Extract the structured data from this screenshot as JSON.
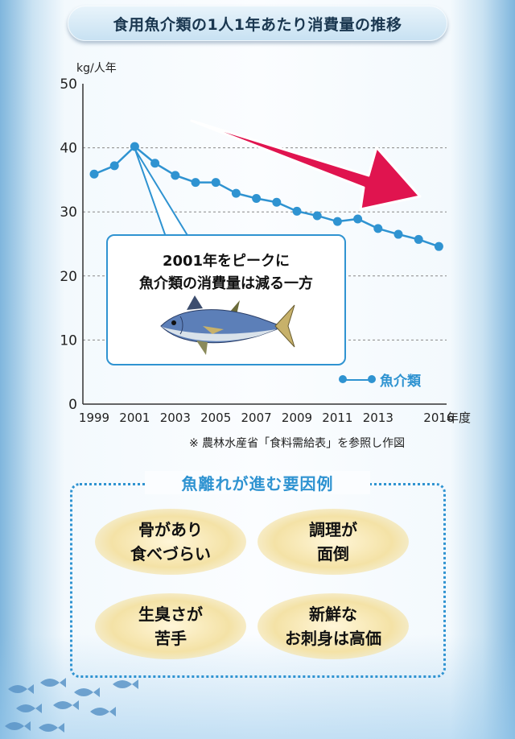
{
  "title": "食用魚介類の1人1年あたり消費量の推移",
  "chart_data": {
    "type": "line",
    "ylabel": "kg/人年",
    "xlabel_unit": "年度",
    "ylim": [
      0,
      50
    ],
    "yticks": [
      "0",
      "10",
      "20",
      "30",
      "40",
      "50"
    ],
    "xtick_labels": [
      "1999",
      "2001",
      "2003",
      "2005",
      "2007",
      "2009",
      "2011",
      "2013",
      "2016"
    ],
    "x": [
      1999,
      2000,
      2001,
      2002,
      2003,
      2004,
      2005,
      2006,
      2007,
      2008,
      2009,
      2010,
      2011,
      2012,
      2013,
      2014,
      2015,
      2016
    ],
    "series": [
      {
        "name": "魚介類",
        "color": "#2f93d1",
        "values": [
          35.9,
          37.2,
          40.2,
          37.6,
          35.7,
          34.6,
          34.6,
          32.9,
          32.1,
          31.5,
          30.1,
          29.4,
          28.5,
          28.9,
          27.4,
          26.5,
          25.7,
          24.6
        ]
      }
    ],
    "grid": "dashed horizontal",
    "legend": "bottom-right"
  },
  "callout": {
    "line1": "2001年をピークに",
    "line2": "魚介類の消費量は減る一方"
  },
  "source_note": "※ 農林水産省「食料需給表」を参照し作図",
  "reasons": {
    "title": "魚離れが進む要因例",
    "items": [
      {
        "line1": "骨があり",
        "line2": "食べづらい"
      },
      {
        "line1": "調理が",
        "line2": "面倒"
      },
      {
        "line1": "生臭さが",
        "line2": "苦手"
      },
      {
        "line1": "新鮮な",
        "line2": "お刺身は高価"
      }
    ]
  },
  "colors": {
    "accent_blue": "#2f93d1",
    "arrow_red": "#e0144f",
    "reason_bg": "#f4e2a6"
  }
}
